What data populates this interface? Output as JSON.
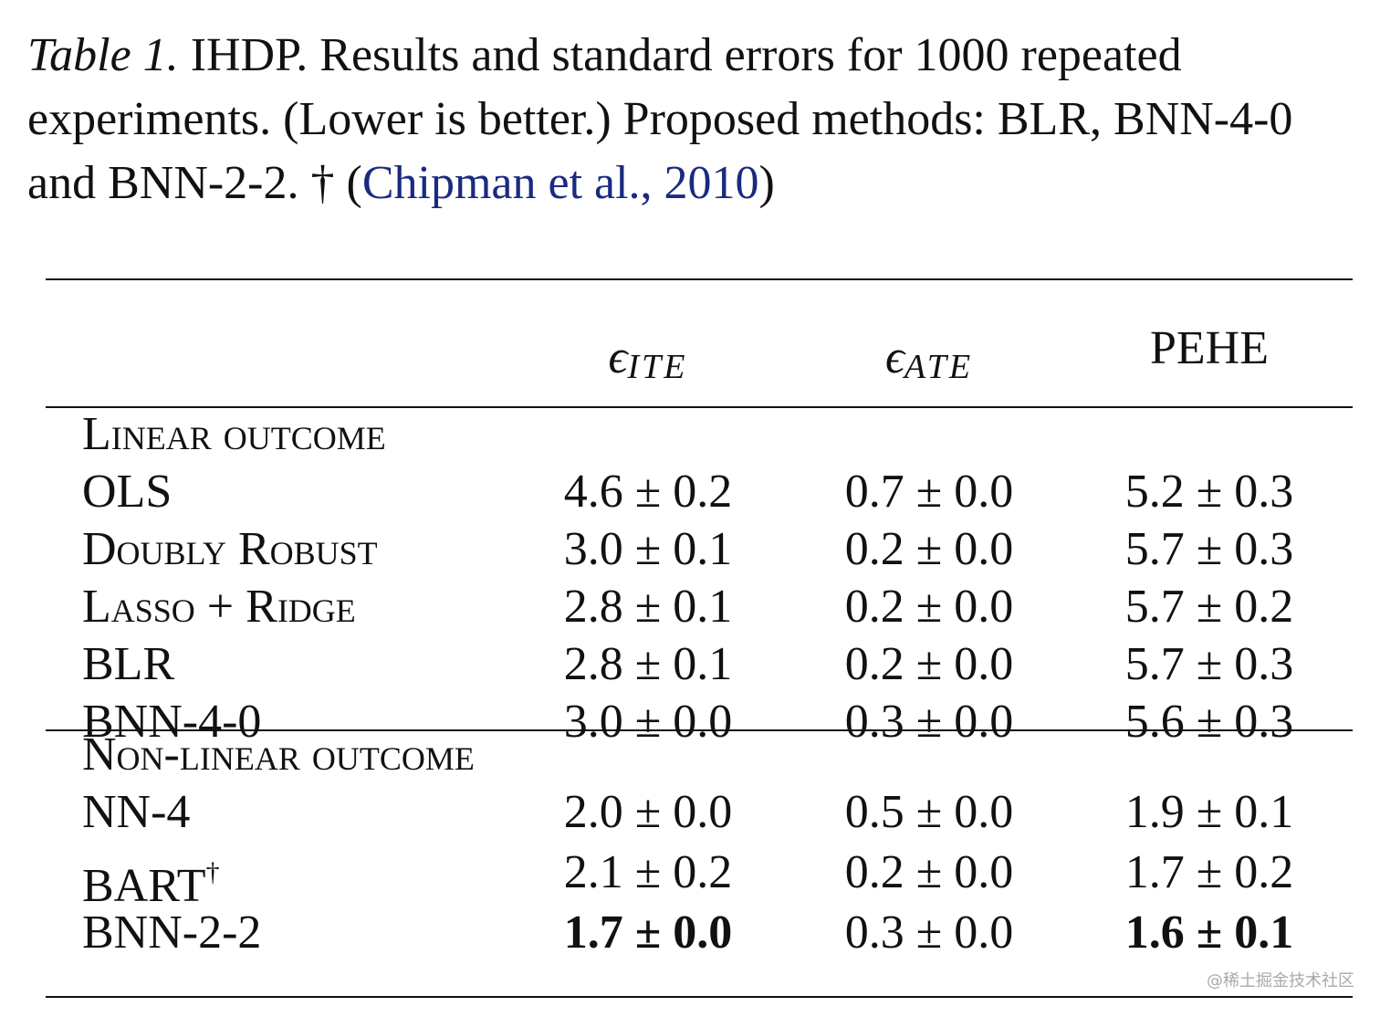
{
  "caption": {
    "label": "Table 1.",
    "text": " IHDP. Results and standard errors for 1000 repeated experiments. (Lower is better.) Proposed methods: BLR, BNN-4-0 and BNN-2-2. † (",
    "link": "Chipman et al., 2010",
    "end": ")"
  },
  "table": {
    "headers": [
      {
        "symbol": "ϵ",
        "sub": "ITE"
      },
      {
        "symbol": "ϵ",
        "sub": "ATE"
      },
      "PEHE"
    ],
    "sections": [
      {
        "title": "Linear outcome",
        "rows": [
          {
            "method": "OLS",
            "cells": [
              "4.6 ± 0.2",
              "0.7 ± 0.0",
              "5.2 ± 0.3"
            ]
          },
          {
            "method": "Doubly Robust",
            "cells": [
              "3.0 ± 0.1",
              "0.2 ± 0.0",
              "5.7 ± 0.3"
            ]
          },
          {
            "method": "Lasso + Ridge",
            "cells": [
              "2.8 ± 0.1",
              "0.2 ± 0.0",
              "5.7 ± 0.2"
            ]
          },
          {
            "method": "BLR",
            "cells": [
              "2.8 ± 0.1",
              "0.2 ± 0.0",
              "5.7 ± 0.3"
            ]
          },
          {
            "method": "BNN-4-0",
            "cells": [
              "3.0 ± 0.0",
              "0.3 ± 0.0",
              "5.6 ± 0.3"
            ]
          }
        ]
      },
      {
        "title": "Non-linear outcome",
        "rows": [
          {
            "method": "NN-4",
            "cells": [
              "2.0 ± 0.0",
              "0.5 ± 0.0",
              "1.9 ± 0.1"
            ]
          },
          {
            "method": "BART",
            "sup": "†",
            "cells": [
              "2.1 ± 0.2",
              "0.2 ± 0.0",
              "1.7 ± 0.2"
            ]
          },
          {
            "method": "BNN-2-2",
            "cells": [
              "1.7 ± 0.0",
              "0.3 ± 0.0",
              "1.6 ± 0.1"
            ],
            "bold": [
              true,
              false,
              true
            ]
          }
        ]
      }
    ]
  },
  "watermark": "@稀土掘金技术社区"
}
